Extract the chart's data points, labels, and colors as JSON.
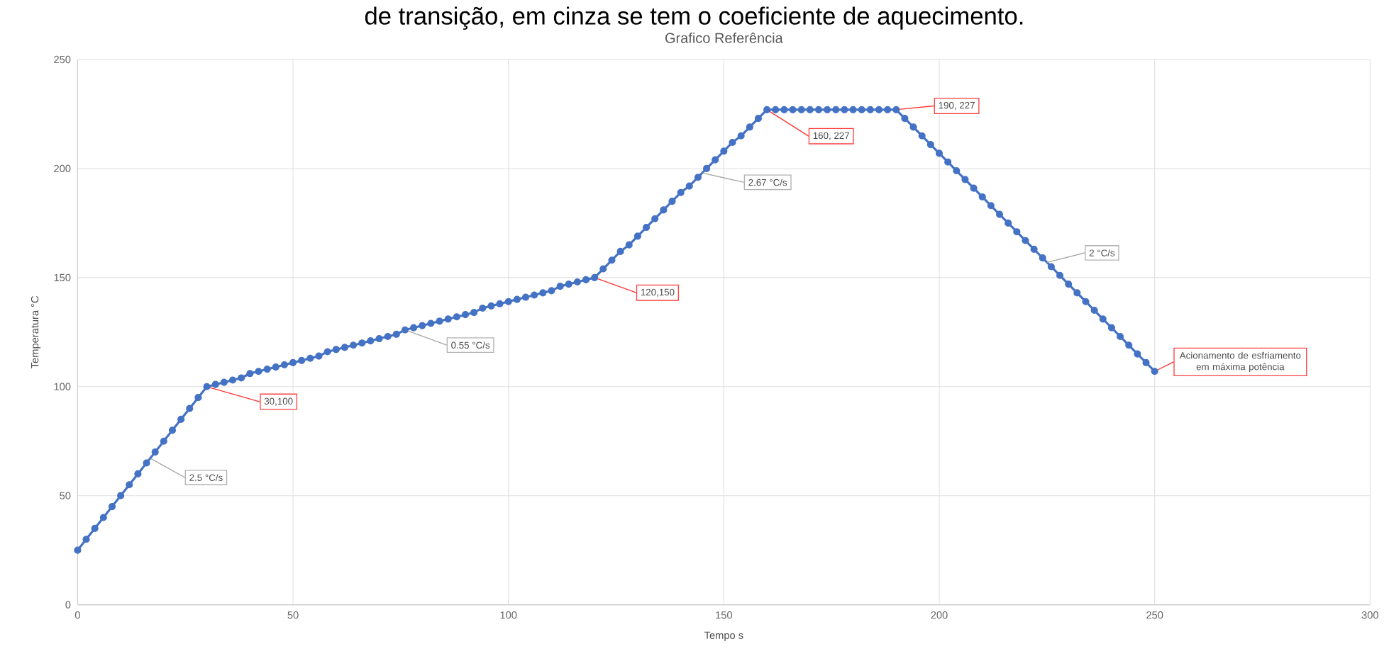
{
  "chart_data": {
    "type": "line",
    "title": "Grafico Referência",
    "xlabel": "Tempo s",
    "ylabel": "Temperatura °C",
    "xlim": [
      0,
      300
    ],
    "xticks": [
      0,
      50,
      100,
      150,
      200,
      250,
      300
    ],
    "ylim": [
      0,
      250
    ],
    "yticks": [
      0,
      50,
      100,
      150,
      200,
      250
    ],
    "grid": true,
    "marker": "circle",
    "line_style": "solid",
    "series": [
      {
        "color": "#4472c4",
        "x": [
          0,
          2,
          4,
          6,
          8,
          10,
          12,
          14,
          16,
          18,
          20,
          22,
          24,
          26,
          28,
          30,
          32,
          34,
          36,
          38,
          40,
          42,
          44,
          46,
          48,
          50,
          52,
          54,
          56,
          58,
          60,
          62,
          64,
          66,
          68,
          70,
          72,
          74,
          76,
          78,
          80,
          82,
          84,
          86,
          88,
          90,
          92,
          94,
          96,
          98,
          100,
          102,
          104,
          106,
          108,
          110,
          112,
          114,
          116,
          118,
          120,
          122,
          124,
          126,
          128,
          130,
          132,
          134,
          136,
          138,
          140,
          142,
          144,
          146,
          148,
          150,
          152,
          154,
          156,
          158,
          160,
          162,
          164,
          166,
          168,
          170,
          172,
          174,
          176,
          178,
          180,
          182,
          184,
          186,
          188,
          190,
          192,
          194,
          196,
          198,
          200,
          202,
          204,
          206,
          208,
          210,
          212,
          214,
          216,
          218,
          220,
          222,
          224,
          226,
          228,
          230,
          232,
          234,
          236,
          238,
          240,
          242,
          244,
          246,
          248,
          250
        ],
        "values": [
          25,
          30,
          35,
          40,
          45,
          50,
          55,
          60,
          65,
          70,
          75,
          80,
          85,
          90,
          95,
          100,
          101,
          102,
          103,
          104,
          106,
          107,
          108,
          109,
          110,
          111,
          112,
          113,
          114,
          116,
          117,
          118,
          119,
          120,
          121,
          122,
          123,
          124,
          126,
          127,
          128,
          129,
          130,
          131,
          132,
          133,
          134,
          136,
          137,
          138,
          139,
          140,
          141,
          142,
          143,
          144,
          146,
          147,
          148,
          149,
          150,
          154,
          158,
          162,
          165,
          169,
          173,
          177,
          181,
          185,
          189,
          192,
          196,
          200,
          204,
          208,
          212,
          215,
          219,
          223,
          227,
          227,
          227,
          227,
          227,
          227,
          227,
          227,
          227,
          227,
          227,
          227,
          227,
          227,
          227,
          227,
          223,
          219,
          215,
          211,
          207,
          203,
          199,
          195,
          191,
          187,
          183,
          179,
          175,
          171,
          167,
          163,
          159,
          155,
          151,
          147,
          143,
          139,
          135,
          131,
          127,
          123,
          119,
          115,
          111,
          107
        ]
      }
    ],
    "annotations": [
      "de transição, em cinza se tem o coeficiente de aquecimento.",
      {
        "text": "2.5 °C/s",
        "x": 17,
        "y": 67
      },
      {
        "text": "30,100",
        "x": 30,
        "y": 100
      },
      {
        "text": "0.55 °C/s",
        "x": 76,
        "y": 126
      },
      {
        "text": "120,150",
        "x": 120,
        "y": 150
      },
      {
        "text": "2.67 °C/s",
        "x": 145,
        "y": 198
      },
      {
        "text": "160, 227",
        "x": 160,
        "y": 227
      },
      {
        "text": "190, 227",
        "x": 190,
        "y": 227
      },
      {
        "text": "2 °C/s",
        "x": 225,
        "y": 157
      },
      {
        "text": "Acionamento de esfriamento em máxima potência",
        "x": 250,
        "y": 107
      }
    ]
  }
}
